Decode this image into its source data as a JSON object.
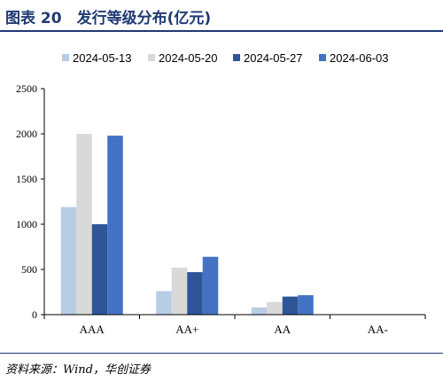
{
  "header": {
    "title": "图表 20　发行等级分布(亿元)"
  },
  "footer": {
    "source": "资料来源：Wind，华创证券"
  },
  "colors": {
    "series": [
      "#b8cce4",
      "#d9d9d9",
      "#2e5597",
      "#4472c4"
    ],
    "axis": "#000000",
    "title": "#1f3a73"
  },
  "chart_data": {
    "type": "bar",
    "title": "",
    "xlabel": "",
    "ylabel": "",
    "categories": [
      "AAA",
      "AA+",
      "AA",
      "AA-"
    ],
    "ylim": [
      0,
      2500
    ],
    "yticks": [
      0,
      500,
      1000,
      1500,
      2000,
      2500
    ],
    "grid": false,
    "legend_position": "top",
    "series": [
      {
        "name": "2024-05-13",
        "values": [
          1190,
          260,
          80,
          0
        ]
      },
      {
        "name": "2024-05-20",
        "values": [
          2000,
          520,
          140,
          0
        ]
      },
      {
        "name": "2024-05-27",
        "values": [
          1000,
          470,
          200,
          0
        ]
      },
      {
        "name": "2024-06-03",
        "values": [
          1980,
          640,
          215,
          0
        ]
      }
    ]
  }
}
